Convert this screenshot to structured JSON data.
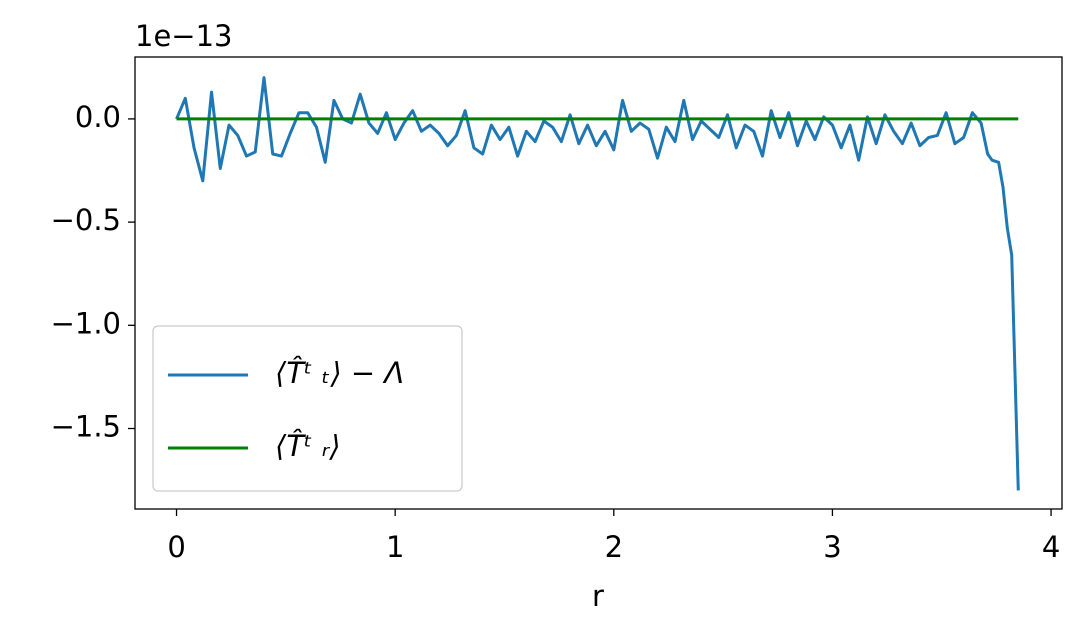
{
  "chart_data": {
    "type": "line",
    "offset_label": "1e−13",
    "xlabel": "r",
    "xlim": [
      -0.19,
      4.05
    ],
    "xticks": [
      0,
      1,
      2,
      3,
      4
    ],
    "ylim": [
      -1.89,
      0.3
    ],
    "yticks": [
      {
        "value": 0,
        "label": "0.0"
      },
      {
        "value": -0.5,
        "label": "−0.5"
      },
      {
        "value": -1.0,
        "label": "−1.0"
      },
      {
        "value": -1.5,
        "label": "−1.5"
      }
    ],
    "grid": false,
    "legend": "lower left",
    "series": [
      {
        "name": "⟨T̂ᵗ ₜ⟩ − Λ",
        "color": "#1f77b4",
        "x": [
          0.0,
          0.04,
          0.08,
          0.12,
          0.16,
          0.2,
          0.24,
          0.28,
          0.32,
          0.36,
          0.4,
          0.44,
          0.48,
          0.52,
          0.56,
          0.6,
          0.64,
          0.68,
          0.72,
          0.76,
          0.8,
          0.84,
          0.88,
          0.92,
          0.96,
          1.0,
          1.04,
          1.08,
          1.12,
          1.16,
          1.2,
          1.24,
          1.28,
          1.32,
          1.36,
          1.4,
          1.44,
          1.48,
          1.52,
          1.56,
          1.6,
          1.64,
          1.68,
          1.72,
          1.76,
          1.8,
          1.84,
          1.88,
          1.92,
          1.96,
          2.0,
          2.04,
          2.08,
          2.12,
          2.16,
          2.2,
          2.24,
          2.28,
          2.32,
          2.36,
          2.4,
          2.44,
          2.48,
          2.52,
          2.56,
          2.6,
          2.64,
          2.68,
          2.72,
          2.76,
          2.8,
          2.84,
          2.88,
          2.92,
          2.96,
          3.0,
          3.04,
          3.08,
          3.12,
          3.16,
          3.2,
          3.24,
          3.28,
          3.32,
          3.36,
          3.4,
          3.44,
          3.48,
          3.52,
          3.56,
          3.6,
          3.64,
          3.68,
          3.71,
          3.73,
          3.76,
          3.78,
          3.8,
          3.82,
          3.85
        ],
        "values": [
          0.0,
          0.1,
          -0.14,
          -0.3,
          0.13,
          -0.24,
          -0.03,
          -0.08,
          -0.18,
          -0.16,
          0.2,
          -0.17,
          -0.18,
          -0.07,
          0.03,
          0.03,
          -0.04,
          -0.21,
          0.09,
          0.0,
          -0.02,
          0.12,
          -0.02,
          -0.07,
          0.03,
          -0.1,
          -0.02,
          0.04,
          -0.06,
          -0.03,
          -0.07,
          -0.13,
          -0.08,
          0.04,
          -0.14,
          -0.17,
          -0.03,
          -0.1,
          -0.04,
          -0.18,
          -0.06,
          -0.11,
          -0.01,
          -0.04,
          -0.11,
          0.02,
          -0.12,
          -0.03,
          -0.13,
          -0.06,
          -0.15,
          0.09,
          -0.06,
          -0.02,
          -0.05,
          -0.19,
          -0.04,
          -0.11,
          0.09,
          -0.1,
          -0.01,
          -0.05,
          -0.09,
          0.02,
          -0.14,
          -0.03,
          -0.06,
          -0.18,
          0.04,
          -0.09,
          0.03,
          -0.13,
          -0.01,
          -0.1,
          0.01,
          -0.03,
          -0.14,
          -0.03,
          -0.2,
          0.01,
          -0.12,
          0.02,
          -0.06,
          -0.12,
          -0.02,
          -0.13,
          -0.09,
          -0.08,
          0.03,
          -0.12,
          -0.09,
          0.03,
          -0.02,
          -0.17,
          -0.2,
          -0.21,
          -0.33,
          -0.53,
          -0.66,
          -1.8
        ]
      },
      {
        "name": "⟨T̂ᵗ ᵣ⟩",
        "color": "#008000",
        "x": [
          0,
          3.85
        ],
        "values": [
          0,
          0
        ]
      }
    ]
  }
}
